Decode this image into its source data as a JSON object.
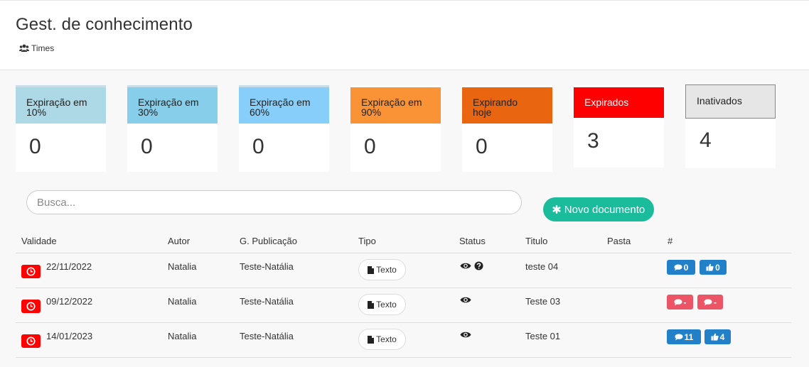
{
  "header": {
    "title": "Gest. de conhecimento",
    "breadcrumb": "Times"
  },
  "cards": [
    {
      "line1": "Expiração em",
      "line2": "10%",
      "value": "0"
    },
    {
      "line1": "Expiração em",
      "line2": "30%",
      "value": "0"
    },
    {
      "line1": "Expiração em",
      "line2": "60%",
      "value": "0"
    },
    {
      "line1": "Expiração em",
      "line2": "90%",
      "value": "0"
    },
    {
      "line1": "Expirando",
      "line2": "hoje",
      "value": "0"
    },
    {
      "line1": "Expirados",
      "line2": "",
      "value": "3"
    },
    {
      "line1": "Inativados",
      "line2": "",
      "value": "4"
    }
  ],
  "colors": {
    "accent": "#1abc9c",
    "expired": "#ff0000",
    "comment_red": "#ec5565",
    "blue": "#2180c8"
  },
  "search": {
    "placeholder": "Busca..."
  },
  "new_doc_label": "Novo documento",
  "table": {
    "headers": [
      "Validade",
      "Autor",
      "G. Publicação",
      "Tipo",
      "Status",
      "Titulo",
      "Pasta",
      "#"
    ],
    "rows": [
      {
        "validade": "22/11/2022",
        "autor": "Natalia",
        "grupo": "Teste-Natália",
        "tipo": "Texto",
        "titulo": "teste 04",
        "pasta": "",
        "comments": "0",
        "likes": "0"
      },
      {
        "validade": "09/12/2022",
        "autor": "Natalia",
        "grupo": "Teste-Natália",
        "tipo": "Texto",
        "titulo": "Teste 03",
        "pasta": "",
        "comments": "-",
        "likes": "-"
      },
      {
        "validade": "14/01/2023",
        "autor": "Natalia",
        "grupo": "Teste-Natália",
        "tipo": "Texto",
        "titulo": "Teste 01",
        "pasta": "",
        "comments": "11",
        "likes": "4"
      }
    ]
  }
}
